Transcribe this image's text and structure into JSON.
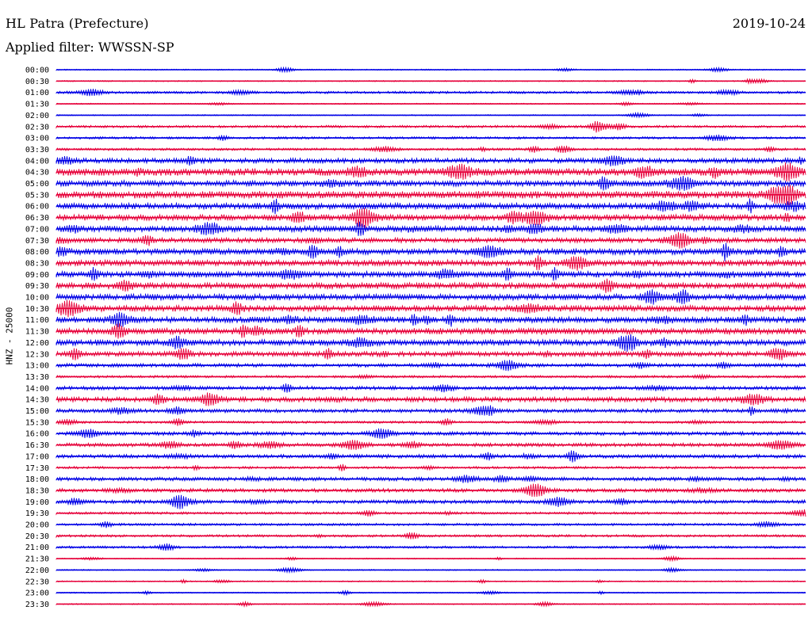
{
  "header": {
    "title": "HL Patra (Prefecture)",
    "date": "2019-10-24",
    "filter": "Applied filter: WWSSN-SP"
  },
  "chart_data": {
    "type": "line",
    "title": "HL Patra (Prefecture)",
    "date": "2019-10-24",
    "ylabel": "HNZ - 25000",
    "colors": {
      "even": "#0000e6",
      "odd": "#e6003a"
    },
    "rows": [
      {
        "label": "00:00",
        "amp": 1
      },
      {
        "label": "00:30",
        "amp": 1
      },
      {
        "label": "01:00",
        "amp": 2
      },
      {
        "label": "01:30",
        "amp": 1
      },
      {
        "label": "02:00",
        "amp": 1
      },
      {
        "label": "02:30",
        "amp": 2
      },
      {
        "label": "03:00",
        "amp": 2
      },
      {
        "label": "03:30",
        "amp": 2
      },
      {
        "label": "04:00",
        "amp": 4
      },
      {
        "label": "04:30",
        "amp": 6
      },
      {
        "label": "05:00",
        "amp": 5
      },
      {
        "label": "05:30",
        "amp": 6
      },
      {
        "label": "06:00",
        "amp": 5
      },
      {
        "label": "06:30",
        "amp": 5
      },
      {
        "label": "07:00",
        "amp": 5
      },
      {
        "label": "07:30",
        "amp": 4
      },
      {
        "label": "08:00",
        "amp": 5
      },
      {
        "label": "08:30",
        "amp": 5
      },
      {
        "label": "09:00",
        "amp": 5
      },
      {
        "label": "09:30",
        "amp": 5
      },
      {
        "label": "10:00",
        "amp": 5
      },
      {
        "label": "10:30",
        "amp": 5
      },
      {
        "label": "11:00",
        "amp": 5
      },
      {
        "label": "11:30",
        "amp": 5
      },
      {
        "label": "12:00",
        "amp": 5
      },
      {
        "label": "12:30",
        "amp": 4
      },
      {
        "label": "13:00",
        "amp": 3
      },
      {
        "label": "13:30",
        "amp": 2
      },
      {
        "label": "14:00",
        "amp": 3
      },
      {
        "label": "14:30",
        "amp": 4
      },
      {
        "label": "15:00",
        "amp": 3
      },
      {
        "label": "15:30",
        "amp": 2
      },
      {
        "label": "16:00",
        "amp": 3
      },
      {
        "label": "16:30",
        "amp": 3
      },
      {
        "label": "17:00",
        "amp": 3
      },
      {
        "label": "17:30",
        "amp": 2
      },
      {
        "label": "18:00",
        "amp": 3
      },
      {
        "label": "18:30",
        "amp": 3
      },
      {
        "label": "19:00",
        "amp": 3
      },
      {
        "label": "19:30",
        "amp": 2
      },
      {
        "label": "20:00",
        "amp": 2
      },
      {
        "label": "20:30",
        "amp": 2
      },
      {
        "label": "21:00",
        "amp": 2
      },
      {
        "label": "21:30",
        "amp": 1
      },
      {
        "label": "22:00",
        "amp": 1
      },
      {
        "label": "22:30",
        "amp": 1
      },
      {
        "label": "23:00",
        "amp": 1
      },
      {
        "label": "23:30",
        "amp": 1
      }
    ]
  }
}
